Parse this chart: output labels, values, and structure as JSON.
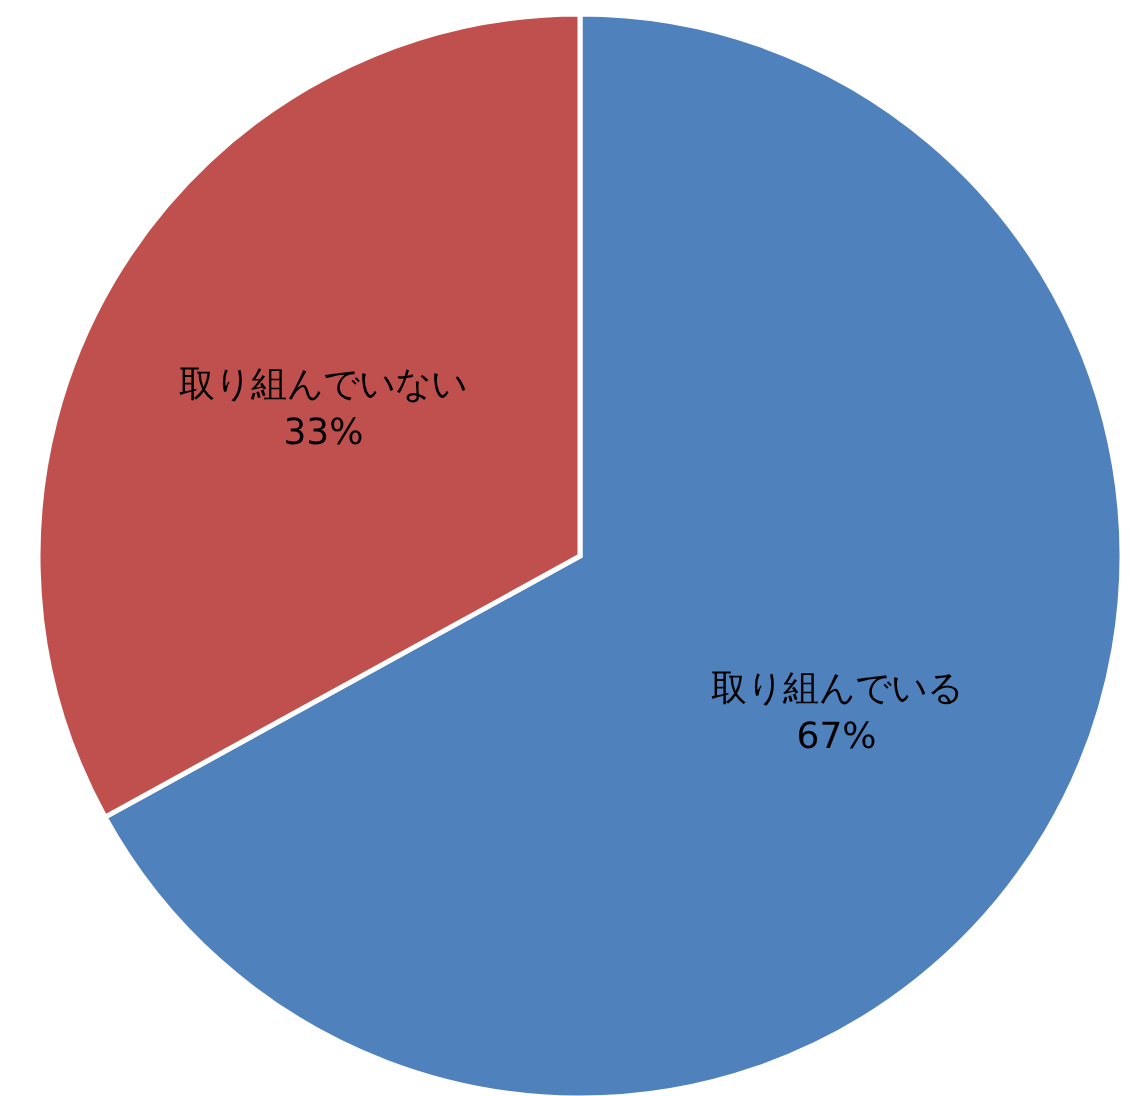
{
  "chart_data": {
    "type": "pie",
    "categories": [
      "取り組んでいる",
      "取り組んでいない"
    ],
    "values": [
      67,
      33
    ],
    "colors": [
      "#4f81bd",
      "#c0504d"
    ],
    "value_labels": [
      "67%",
      "33%"
    ]
  }
}
